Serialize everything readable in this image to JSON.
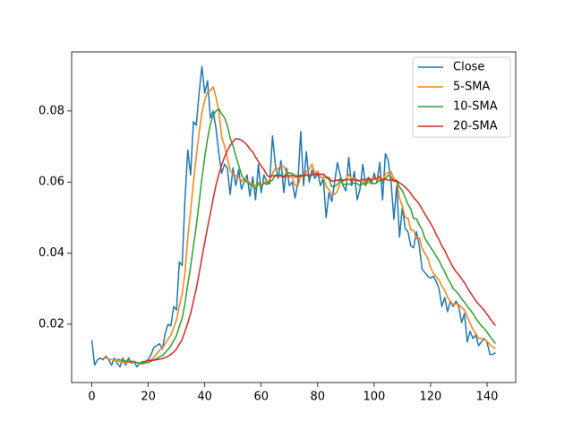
{
  "chart_data": {
    "type": "line",
    "x": [
      0,
      1,
      2,
      3,
      4,
      5,
      6,
      7,
      8,
      9,
      10,
      11,
      12,
      13,
      14,
      15,
      16,
      17,
      18,
      19,
      20,
      21,
      22,
      23,
      24,
      25,
      26,
      27,
      28,
      29,
      30,
      31,
      32,
      33,
      34,
      35,
      36,
      37,
      38,
      39,
      40,
      41,
      42,
      43,
      44,
      45,
      46,
      47,
      48,
      49,
      50,
      51,
      52,
      53,
      54,
      55,
      56,
      57,
      58,
      59,
      60,
      61,
      62,
      63,
      64,
      65,
      66,
      67,
      68,
      69,
      70,
      71,
      72,
      73,
      74,
      75,
      76,
      77,
      78,
      79,
      80,
      81,
      82,
      83,
      84,
      85,
      86,
      87,
      88,
      89,
      90,
      91,
      92,
      93,
      94,
      95,
      96,
      97,
      98,
      99,
      100,
      101,
      102,
      103,
      104,
      105,
      106,
      107,
      108,
      109,
      110,
      111,
      112,
      113,
      114,
      115,
      116,
      117,
      118,
      119,
      120,
      121,
      122,
      123,
      124,
      125,
      126,
      127,
      128,
      129,
      130,
      131,
      132,
      133,
      134,
      135,
      136,
      137,
      138,
      139,
      140,
      141,
      142,
      143
    ],
    "series": [
      {
        "name": "Close",
        "color": "#1f77b4",
        "values": [
          0.0155,
          0.0085,
          0.01,
          0.0105,
          0.01,
          0.011,
          0.01,
          0.0085,
          0.0105,
          0.009,
          0.008,
          0.0105,
          0.0085,
          0.0105,
          0.009,
          0.0095,
          0.008,
          0.009,
          0.0095,
          0.0095,
          0.01,
          0.0115,
          0.0135,
          0.014,
          0.0145,
          0.013,
          0.0175,
          0.02,
          0.0195,
          0.025,
          0.024,
          0.0375,
          0.0365,
          0.055,
          0.069,
          0.062,
          0.077,
          0.076,
          0.085,
          0.0925,
          0.085,
          0.0885,
          0.078,
          0.08,
          0.075,
          0.068,
          0.0625,
          0.065,
          0.064,
          0.0565,
          0.064,
          0.059,
          0.0635,
          0.058,
          0.06,
          0.062,
          0.056,
          0.0615,
          0.055,
          0.065,
          0.057,
          0.062,
          0.06,
          0.0595,
          0.073,
          0.065,
          0.061,
          0.066,
          0.057,
          0.064,
          0.059,
          0.06,
          0.0555,
          0.06,
          0.0742,
          0.059,
          0.0685,
          0.06,
          0.0635,
          0.061,
          0.0625,
          0.059,
          0.061,
          0.05,
          0.057,
          0.0545,
          0.06,
          0.0655,
          0.062,
          0.059,
          0.0575,
          0.067,
          0.059,
          0.063,
          0.055,
          0.058,
          0.065,
          0.059,
          0.061,
          0.0595,
          0.0625,
          0.06,
          0.0655,
          0.055,
          0.068,
          0.066,
          0.06,
          0.0495,
          0.059,
          0.0445,
          0.053,
          0.047,
          0.046,
          0.042,
          0.0415,
          0.046,
          0.042,
          0.0355,
          0.0345,
          0.0335,
          0.033,
          0.0335,
          0.032,
          0.03,
          0.025,
          0.0275,
          0.0235,
          0.0265,
          0.025,
          0.0265,
          0.025,
          0.0205,
          0.023,
          0.015,
          0.018,
          0.016,
          0.017,
          0.014,
          0.015,
          0.016,
          0.015,
          0.0115,
          0.0115,
          0.012
        ]
      },
      {
        "name": "5-SMA",
        "color": "#ff7f0e",
        "values": [
          null,
          null,
          null,
          null,
          0.0105,
          0.0105,
          0.0102,
          0.01,
          0.0099,
          0.0098,
          0.0094,
          0.0093,
          0.0091,
          0.0093,
          0.0093,
          0.0096,
          0.0091,
          0.0089,
          0.0088,
          0.0091,
          0.0092,
          0.0099,
          0.0108,
          0.0117,
          0.0127,
          0.0133,
          0.0145,
          0.0158,
          0.0169,
          0.019,
          0.0212,
          0.0252,
          0.0285,
          0.0345,
          0.0444,
          0.052,
          0.0599,
          0.0671,
          0.0738,
          0.0795,
          0.0831,
          0.0854,
          0.0858,
          0.0868,
          0.0838,
          0.0799,
          0.0727,
          0.0701,
          0.0669,
          0.0632,
          0.0624,
          0.0617,
          0.0614,
          0.0602,
          0.0609,
          0.0605,
          0.0597,
          0.0595,
          0.0589,
          0.0599,
          0.0589,
          0.0601,
          0.0597,
          0.0607,
          0.0623,
          0.0639,
          0.0637,
          0.0647,
          0.0644,
          0.0626,
          0.0614,
          0.0612,
          0.0591,
          0.0589,
          0.0618,
          0.0613,
          0.063,
          0.0636,
          0.0651,
          0.0624,
          0.0631,
          0.0612,
          0.0614,
          0.0587,
          0.0579,
          0.0563,
          0.0565,
          0.0574,
          0.0598,
          0.0602,
          0.0608,
          0.0622,
          0.0609,
          0.0611,
          0.0603,
          0.0603,
          0.0601,
          0.06,
          0.0597,
          0.0605,
          0.0614,
          0.0604,
          0.0617,
          0.0605,
          0.0622,
          0.0627,
          0.0629,
          0.0609,
          0.0605,
          0.0554,
          0.0532,
          0.05,
          0.0499,
          0.0465,
          0.0464,
          0.0441,
          0.0443,
          0.0414,
          0.0399,
          0.0387,
          0.0359,
          0.0343,
          0.0333,
          0.0324,
          0.0307,
          0.0296,
          0.0276,
          0.0265,
          0.0255,
          0.0258,
          0.0255,
          0.0247,
          0.024,
          0.0221,
          0.0203,
          0.0185,
          0.0174,
          0.016,
          0.016,
          0.0156,
          0.0152,
          0.0143,
          0.0136,
          0.0132
        ]
      },
      {
        "name": "10-SMA",
        "color": "#2ca02c",
        "values": [
          null,
          null,
          null,
          null,
          null,
          null,
          null,
          null,
          null,
          0.0102,
          0.0099,
          0.0099,
          0.0096,
          0.0096,
          0.0096,
          0.0095,
          0.0092,
          0.0091,
          0.0091,
          0.0092,
          0.0093,
          0.0096,
          0.01,
          0.0103,
          0.0109,
          0.0112,
          0.012,
          0.0129,
          0.0139,
          0.0154,
          0.0168,
          0.0194,
          0.0217,
          0.0258,
          0.0313,
          0.0362,
          0.042,
          0.0476,
          0.0542,
          0.061,
          0.067,
          0.0722,
          0.0763,
          0.0788,
          0.08,
          0.0806,
          0.0792,
          0.0781,
          0.076,
          0.0724,
          0.0703,
          0.0673,
          0.0648,
          0.0621,
          0.0606,
          0.06,
          0.0593,
          0.059,
          0.0581,
          0.0595,
          0.0588,
          0.0597,
          0.0593,
          0.0601,
          0.0606,
          0.062,
          0.0617,
          0.0621,
          0.0616,
          0.0624,
          0.0626,
          0.0624,
          0.0619,
          0.0618,
          0.062,
          0.0614,
          0.0622,
          0.0614,
          0.062,
          0.0621,
          0.0624,
          0.0621,
          0.0622,
          0.0612,
          0.0608,
          0.0587,
          0.0588,
          0.0593,
          0.0606,
          0.0594,
          0.0593,
          0.0595,
          0.0593,
          0.0598,
          0.0596,
          0.0589,
          0.0597,
          0.0591,
          0.0607,
          0.06,
          0.0595,
          0.0598,
          0.0606,
          0.0598,
          0.0611,
          0.0619,
          0.0614,
          0.0604,
          0.0601,
          0.0586,
          0.0576,
          0.0557,
          0.0537,
          0.0524,
          0.0497,
          0.0497,
          0.0479,
          0.0466,
          0.0441,
          0.0429,
          0.0416,
          0.0405,
          0.0391,
          0.0379,
          0.0362,
          0.0348,
          0.033,
          0.0317,
          0.03,
          0.0293,
          0.0284,
          0.0271,
          0.0262,
          0.025,
          0.0241,
          0.023,
          0.0217,
          0.0206,
          0.0195,
          0.0188,
          0.0178,
          0.0166,
          0.0156,
          0.0146
        ]
      },
      {
        "name": "20-SMA",
        "color": "#d62728",
        "values": [
          null,
          null,
          null,
          null,
          null,
          null,
          null,
          null,
          null,
          null,
          null,
          null,
          null,
          null,
          null,
          null,
          null,
          null,
          null,
          0.0098,
          0.0098,
          0.0098,
          0.0099,
          0.01,
          0.0102,
          0.0103,
          0.0106,
          0.011,
          0.0115,
          0.0122,
          0.013,
          0.0144,
          0.0157,
          0.0179,
          0.0204,
          0.023,
          0.0265,
          0.03,
          0.0342,
          0.0387,
          0.043,
          0.0473,
          0.0511,
          0.0553,
          0.0592,
          0.0622,
          0.0648,
          0.067,
          0.0688,
          0.0703,
          0.0714,
          0.0722,
          0.0721,
          0.0718,
          0.0712,
          0.0704,
          0.0692,
          0.0685,
          0.067,
          0.0658,
          0.0645,
          0.0635,
          0.062,
          0.0614,
          0.0618,
          0.0617,
          0.0617,
          0.0617,
          0.0613,
          0.0618,
          0.0618,
          0.0619,
          0.0614,
          0.0614,
          0.0617,
          0.0619,
          0.062,
          0.0618,
          0.0622,
          0.0621,
          0.0623,
          0.0622,
          0.0622,
          0.0615,
          0.0612,
          0.0602,
          0.0604,
          0.0605,
          0.0608,
          0.0605,
          0.0607,
          0.0607,
          0.0605,
          0.0607,
          0.0606,
          0.0603,
          0.0608,
          0.0604,
          0.0613,
          0.0605,
          0.0609,
          0.0609,
          0.0614,
          0.0605,
          0.0609,
          0.0605,
          0.0606,
          0.0603,
          0.0604,
          0.0597,
          0.0593,
          0.0585,
          0.0578,
          0.0568,
          0.0556,
          0.0548,
          0.0538,
          0.0524,
          0.051,
          0.0497,
          0.0484,
          0.047,
          0.0452,
          0.0438,
          0.042,
          0.0408,
          0.039,
          0.0375,
          0.036,
          0.0348,
          0.0339,
          0.0328,
          0.0317,
          0.0303,
          0.029,
          0.0278,
          0.0266,
          0.0257,
          0.0248,
          0.0239,
          0.0228,
          0.0217,
          0.0206,
          0.0196
        ]
      }
    ],
    "xlim": [
      -7.15,
      150.15
    ],
    "ylim": [
      0.0036,
      0.0966
    ],
    "xticks": [
      0,
      20,
      40,
      60,
      80,
      100,
      120,
      140
    ],
    "yticks": [
      0.02,
      0.04,
      0.06,
      0.08
    ],
    "grid": false,
    "legend": "upper right"
  }
}
